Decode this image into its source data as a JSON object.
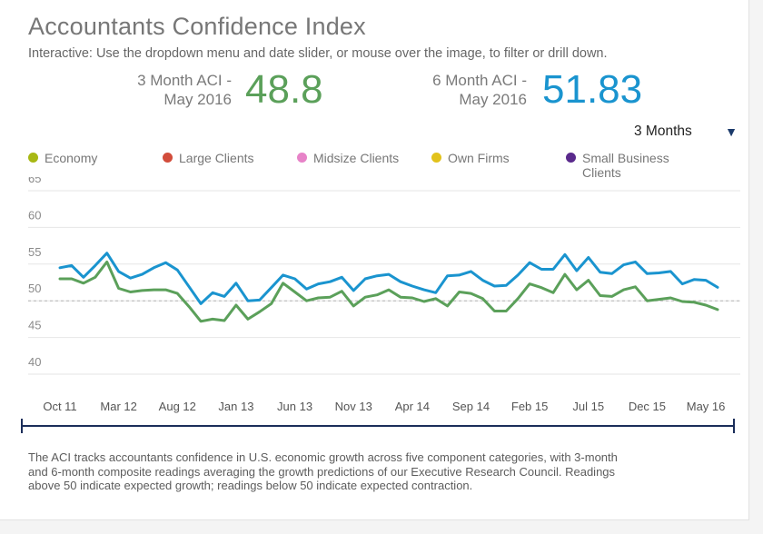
{
  "header": {
    "title": "Accountants Confidence Index",
    "subtitle": "Interactive: Use the dropdown menu and date slider, or mouse over the image, to filter or drill down."
  },
  "kpis": [
    {
      "label_line1": "3 Month ACI -",
      "label_line2": "May 2016",
      "value": "48.8",
      "color": "#5ba05a"
    },
    {
      "label_line1": "6 Month ACI -",
      "label_line2": "May 2016",
      "value": "51.83",
      "color": "#1a94cf"
    }
  ],
  "dropdown": {
    "selected": "3 Months"
  },
  "legend": [
    {
      "label": "Economy",
      "color": "#a8b814"
    },
    {
      "label": "Large Clients",
      "color": "#d24d3b"
    },
    {
      "label": "Midsize Clients",
      "color": "#e783c8"
    },
    {
      "label": "Own Firms",
      "color": "#e2c21c"
    },
    {
      "label": "Small Business Clients",
      "color": "#5a2a8c"
    }
  ],
  "chart_data": {
    "type": "line",
    "ylim": [
      40,
      65
    ],
    "yticks": [
      65,
      60,
      55,
      50,
      45,
      40
    ],
    "reference_line": 50,
    "grid": true,
    "x_tick_labels": [
      "Oct 11",
      "Mar 12",
      "Aug 12",
      "Jan 13",
      "Jun 13",
      "Nov 13",
      "Apr 14",
      "Sep 14",
      "Feb 15",
      "Jul 15",
      "Dec 15",
      "May 16"
    ],
    "x_tick_index": [
      0,
      5,
      10,
      15,
      20,
      25,
      30,
      35,
      40,
      45,
      50,
      55
    ],
    "series": [
      {
        "color": "#1a94cf",
        "values": [
          54.5,
          54.8,
          53.2,
          54.8,
          56.5,
          54.0,
          53.1,
          53.6,
          54.5,
          55.2,
          54.2,
          51.9,
          49.6,
          51.1,
          50.6,
          52.4,
          50.0,
          50.1,
          51.8,
          53.5,
          53.0,
          51.6,
          52.3,
          52.6,
          53.2,
          51.4,
          53.0,
          53.4,
          53.6,
          52.6,
          52.0,
          51.5,
          51.1,
          53.4,
          53.5,
          54.0,
          52.8,
          52.0,
          52.1,
          53.5,
          55.2,
          54.3,
          54.3,
          56.3,
          54.1,
          55.9,
          53.9,
          53.7,
          54.9,
          55.3,
          53.7,
          53.8,
          54.0,
          52.3,
          52.9,
          52.8,
          51.83
        ]
      },
      {
        "color": "#5ba05a",
        "values": [
          53.0,
          53.0,
          52.4,
          53.2,
          55.3,
          51.7,
          51.2,
          51.4,
          51.5,
          51.5,
          51.0,
          49.2,
          47.2,
          47.5,
          47.3,
          49.4,
          47.5,
          48.5,
          49.6,
          52.4,
          51.2,
          50.0,
          50.4,
          50.5,
          51.3,
          49.3,
          50.5,
          50.8,
          51.5,
          50.5,
          50.4,
          49.9,
          50.3,
          49.3,
          51.2,
          51.0,
          50.3,
          48.6,
          48.6,
          50.3,
          52.3,
          51.8,
          51.1,
          53.6,
          51.5,
          52.8,
          50.7,
          50.6,
          51.5,
          51.9,
          50.0,
          50.2,
          50.4,
          49.9,
          49.8,
          49.4,
          48.8
        ]
      }
    ]
  },
  "footer": {
    "text": "The ACI tracks accountants confidence in U.S. economic growth across five component categories, with 3-month and 6-month composite readings averaging the growth predictions of our Executive Research Council. Readings above 50 indicate expected growth; readings below 50 indicate expected contraction."
  }
}
